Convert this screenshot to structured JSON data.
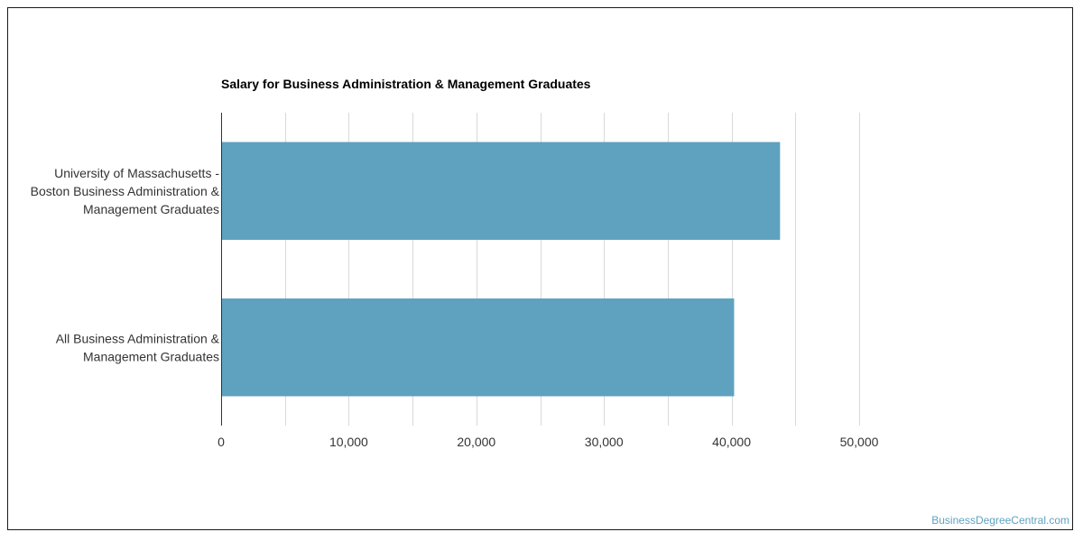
{
  "chart_data": {
    "type": "bar",
    "orientation": "horizontal",
    "title": "Salary for Business Administration & Management Graduates",
    "categories": [
      [
        "University of Massachusetts -",
        "Boston Business Administration &",
        "Management Graduates"
      ],
      [
        "All Business Administration &",
        "Management Graduates"
      ]
    ],
    "values": [
      43800,
      40200
    ],
    "xlim": [
      0,
      50000
    ],
    "xticks": [
      0,
      10000,
      20000,
      30000,
      40000,
      50000
    ],
    "xtick_labels": [
      "0",
      "10,000",
      "20,000",
      "30,000",
      "40,000",
      "50,000"
    ],
    "grid": true,
    "bar_color": "#5ea2bf",
    "grid_color": "#d9d9d9",
    "axis_color": "#333333"
  },
  "watermark": "BusinessDegreeCentral.com"
}
